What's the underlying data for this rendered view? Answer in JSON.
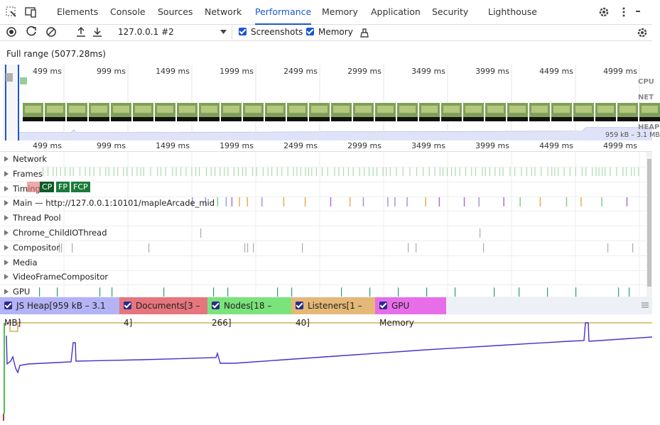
{
  "tabs": [
    "Elements",
    "Console",
    "Sources",
    "Network",
    "Performance",
    "Memory",
    "Application",
    "Security",
    "Lighthouse"
  ],
  "toolbar": {
    "target": "127.0.0.1 #2",
    "checkboxes": [
      "Screenshots",
      "Memory"
    ]
  },
  "range": "Full range (5077.28ms)",
  "overview": {
    "ticks": [
      "499 ms",
      "999 ms",
      "1499 ms",
      "1999 ms",
      "2499 ms",
      "2999 ms",
      "3499 ms",
      "3999 ms",
      "4499 ms",
      "4999 ms"
    ],
    "labels": [
      "CPU",
      "NET",
      "HEAP"
    ],
    "heap_range": "959 kB – 3.1 MB"
  },
  "timeline": {
    "ticks": [
      "499 ms",
      "999 ms",
      "1499 ms",
      "1999 ms",
      "2499 ms",
      "2999 ms",
      "3499 ms",
      "3999 ms",
      "4499 ms",
      "4999 ms"
    ]
  },
  "tracks": [
    "Network",
    "Frames",
    "Timings",
    "Main — http://127.0.0.1:10101/mapleArcade_mid",
    "Thread Pool",
    "Chrome_ChildIOThread",
    "Compositor",
    "Media",
    "VideoFrameCompositor",
    "GPU"
  ],
  "timings": [
    "CP",
    "FP",
    "FCP"
  ],
  "counters": [
    "JS Heap[959 kB – 3.1 MB]",
    "Documents[3 – 4]",
    "Nodes[18 – 266]",
    "Listeners[1 – 40]",
    "GPU Memory"
  ]
}
